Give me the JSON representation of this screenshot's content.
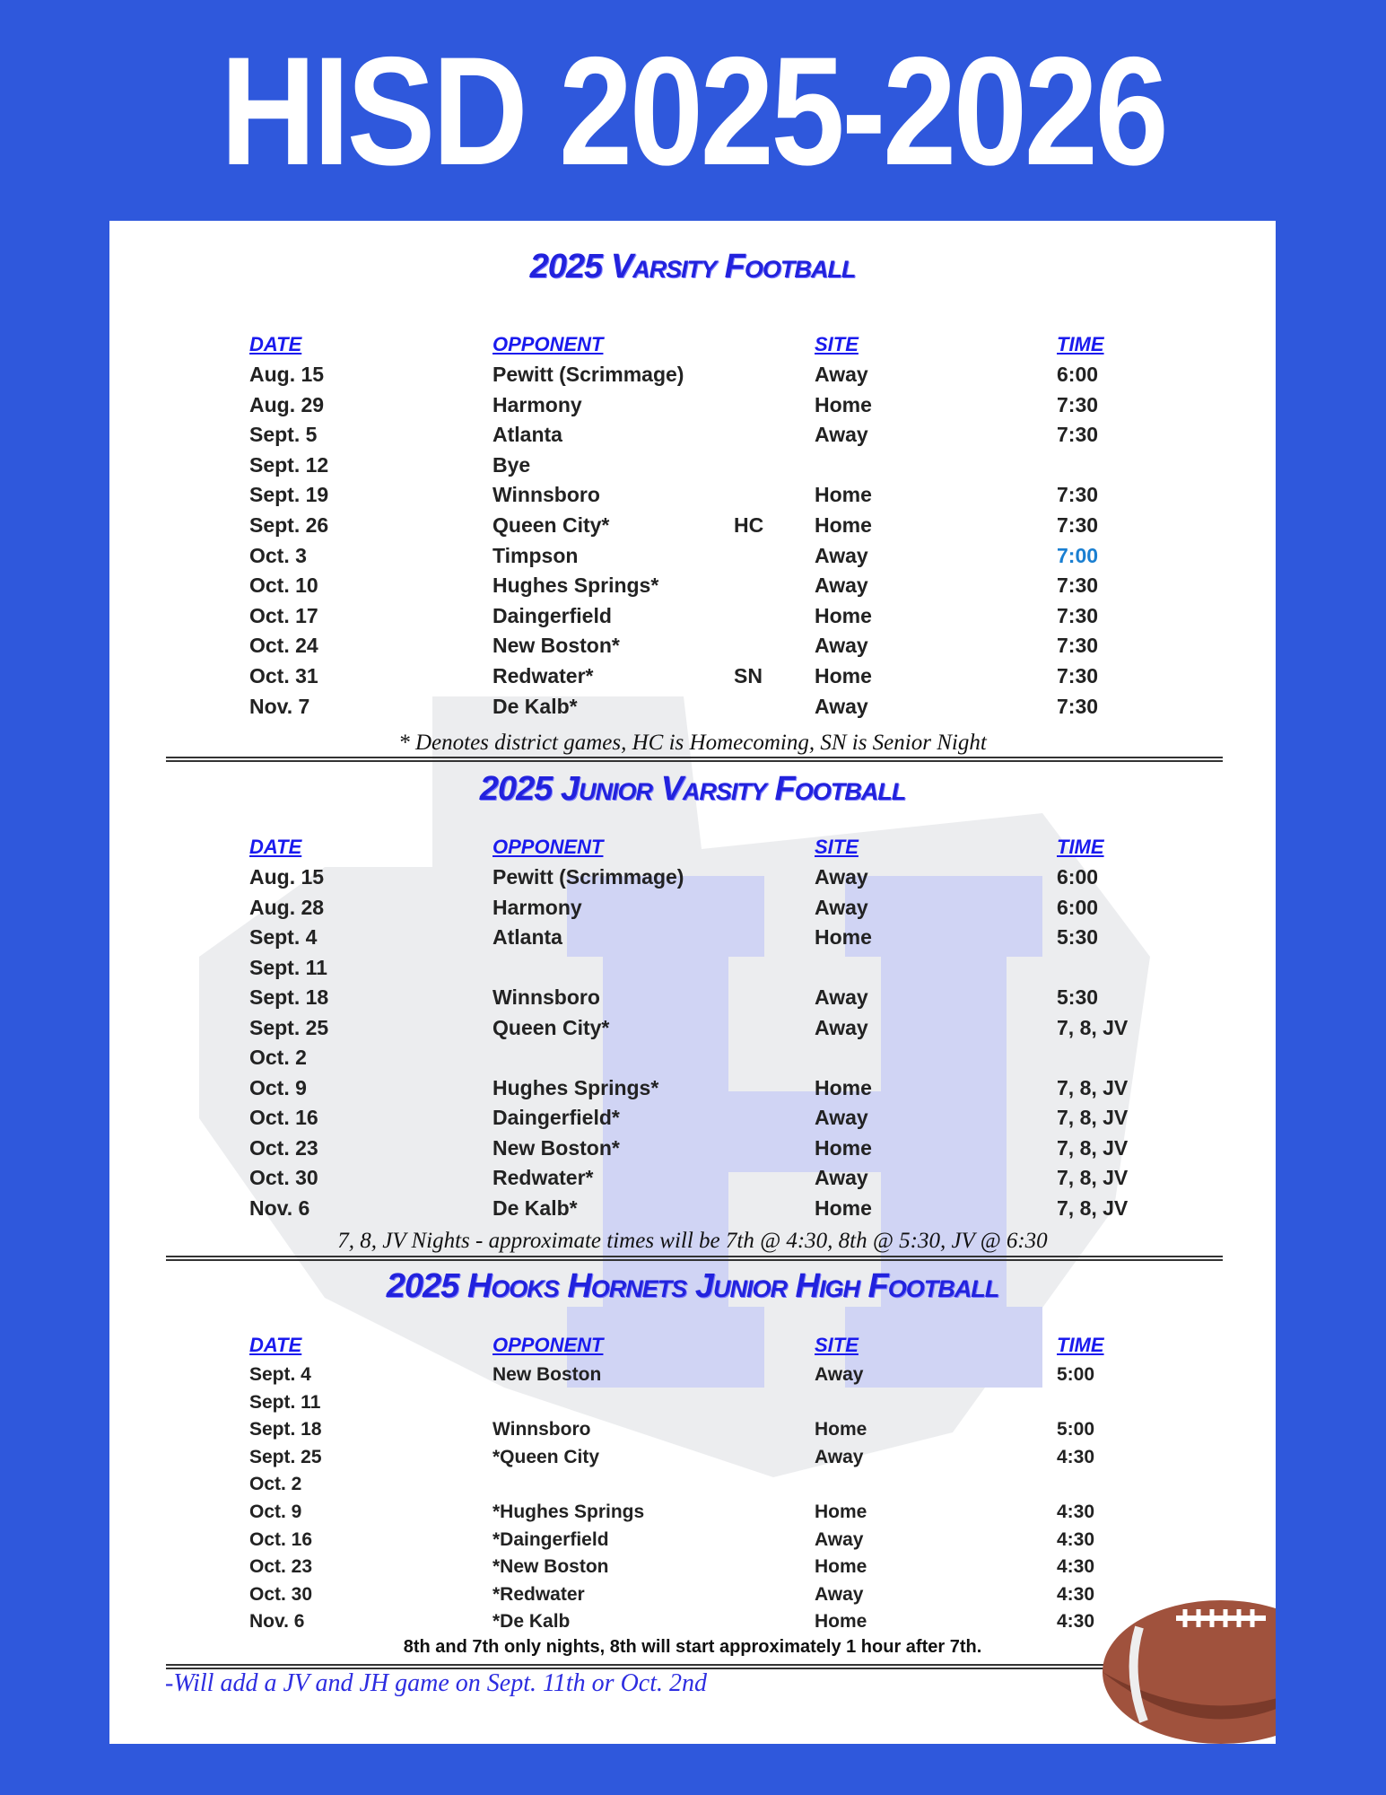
{
  "title": "HISD 2025-2026",
  "columns": {
    "date": "DATE",
    "opponent": "OPPONENT",
    "site": "SITE",
    "time": "TIME"
  },
  "colors": {
    "background": "#2f58dc",
    "section_title": "#2222dd",
    "highlight_time": "#1a7fd1"
  },
  "sections": [
    {
      "title": "2025 Varsity Football",
      "rows": [
        {
          "date": "Aug. 15",
          "opponent": "Pewitt  (Scrimmage)",
          "tag": "",
          "site": "Away",
          "time": "6:00"
        },
        {
          "date": "Aug. 29",
          "opponent": "Harmony",
          "tag": "",
          "site": "Home",
          "time": "7:30"
        },
        {
          "date": "Sept. 5",
          "opponent": "Atlanta",
          "tag": "",
          "site": "Away",
          "time": "7:30"
        },
        {
          "date": "Sept. 12",
          "opponent": "Bye",
          "tag": "",
          "site": "",
          "time": ""
        },
        {
          "date": "Sept. 19",
          "opponent": "Winnsboro",
          "tag": "",
          "site": "Home",
          "time": "7:30"
        },
        {
          "date": "Sept. 26",
          "opponent": "Queen City*",
          "tag": "HC",
          "site": "Home",
          "time": "7:30"
        },
        {
          "date": "Oct. 3",
          "opponent": "Timpson",
          "tag": "",
          "site": "Away",
          "time": "7:00",
          "highlight": true
        },
        {
          "date": "Oct. 10",
          "opponent": "Hughes Springs*",
          "tag": "",
          "site": "Away",
          "time": "7:30"
        },
        {
          "date": "Oct. 17",
          "opponent": "Daingerfield",
          "tag": "",
          "site": "Home",
          "time": "7:30"
        },
        {
          "date": "Oct. 24",
          "opponent": "New Boston*",
          "tag": "",
          "site": "Away",
          "time": "7:30"
        },
        {
          "date": "Oct. 31",
          "opponent": "Redwater*",
          "tag": "SN",
          "site": "Home",
          "time": "7:30"
        },
        {
          "date": "Nov. 7",
          "opponent": "De Kalb*",
          "tag": "",
          "site": "Away",
          "time": "7:30"
        }
      ],
      "note": "* Denotes district games, HC is Homecoming, SN is Senior Night"
    },
    {
      "title": "2025 Junior Varsity Football",
      "rows": [
        {
          "date": "Aug. 15",
          "opponent": "Pewitt  (Scrimmage)",
          "tag": "",
          "site": "Away",
          "time": "6:00"
        },
        {
          "date": "Aug. 28",
          "opponent": "Harmony",
          "tag": "",
          "site": "Away",
          "time": "6:00"
        },
        {
          "date": "Sept. 4",
          "opponent": "Atlanta",
          "tag": "",
          "site": "Home",
          "time": "5:30"
        },
        {
          "date": "Sept. 11",
          "opponent": "",
          "tag": "",
          "site": "",
          "time": ""
        },
        {
          "date": "Sept. 18",
          "opponent": "Winnsboro",
          "tag": "",
          "site": "Away",
          "time": "5:30"
        },
        {
          "date": "Sept. 25",
          "opponent": "Queen City*",
          "tag": "",
          "site": "Away",
          "time": "7, 8, JV"
        },
        {
          "date": "Oct. 2",
          "opponent": "",
          "tag": "",
          "site": "",
          "time": ""
        },
        {
          "date": "Oct. 9",
          "opponent": "Hughes Springs*",
          "tag": "",
          "site": "Home",
          "time": "7, 8, JV"
        },
        {
          "date": "Oct. 16",
          "opponent": "Daingerfield*",
          "tag": "",
          "site": "Away",
          "time": "7, 8, JV"
        },
        {
          "date": "Oct. 23",
          "opponent": "New Boston*",
          "tag": "",
          "site": "Home",
          "time": "7, 8, JV"
        },
        {
          "date": "Oct. 30",
          "opponent": "Redwater*",
          "tag": "",
          "site": "Away",
          "time": "7, 8, JV"
        },
        {
          "date": "Nov. 6",
          "opponent": "De Kalb*",
          "tag": "",
          "site": "Home",
          "time": "7, 8, JV"
        }
      ],
      "note": "7, 8, JV Nights - approximate times will be 7th @ 4:30, 8th @ 5:30, JV @ 6:30"
    },
    {
      "title": "2025 Hooks Hornets Junior High Football",
      "rows": [
        {
          "date": "Sept. 4",
          "opponent": "New Boston",
          "tag": "",
          "site": "Away",
          "time": "5:00"
        },
        {
          "date": "Sept. 11",
          "opponent": "",
          "tag": "",
          "site": "",
          "time": ""
        },
        {
          "date": "Sept. 18",
          "opponent": "Winnsboro",
          "tag": "",
          "site": "Home",
          "time": "5:00"
        },
        {
          "date": "Sept. 25",
          "opponent": "*Queen City",
          "tag": "",
          "site": "Away",
          "time": "4:30"
        },
        {
          "date": "Oct. 2",
          "opponent": "",
          "tag": "",
          "site": "",
          "time": ""
        },
        {
          "date": "Oct. 9",
          "opponent": "*Hughes Springs",
          "tag": "",
          "site": "Home",
          "time": "4:30"
        },
        {
          "date": "Oct. 16",
          "opponent": "*Daingerfield",
          "tag": "",
          "site": "Away",
          "time": "4:30"
        },
        {
          "date": "Oct. 23",
          "opponent": "*New Boston",
          "tag": "",
          "site": "Home",
          "time": "4:30"
        },
        {
          "date": "Oct. 30",
          "opponent": "*Redwater",
          "tag": "",
          "site": "Away",
          "time": "4:30"
        },
        {
          "date": "Nov. 6",
          "opponent": "*De Kalb",
          "tag": "",
          "site": "Home",
          "time": "4:30"
        }
      ],
      "note": "8th and 7th only nights, 8th will start approximately 1 hour after 7th."
    }
  ],
  "add_note": "-Will add a JV and JH game on Sept. 11th or Oct. 2nd"
}
